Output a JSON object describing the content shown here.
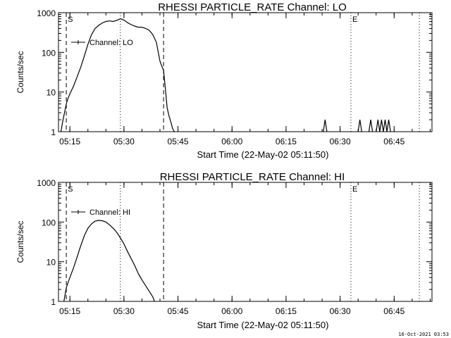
{
  "footer": {
    "timestamp": "16-Oct-2021 03:53"
  },
  "chart_data": [
    {
      "type": "line",
      "title": "RHESSI PARTICLE_RATE Channel: LO",
      "xlabel": "Start Time (22-May-02 05:11:50)",
      "ylabel": "Counts/sec",
      "yscale": "log",
      "ylim": [
        1,
        1000
      ],
      "xlim": [
        "05:11:50",
        "06:55:30"
      ],
      "x_ticks": [
        "05:15",
        "05:30",
        "05:45",
        "06:00",
        "06:15",
        "06:30",
        "06:45"
      ],
      "y_ticks": [
        "1",
        "10",
        "100",
        "1000"
      ],
      "legend": {
        "label": "Channel: LO",
        "position": "top-left"
      },
      "markers": [
        {
          "label": "S",
          "time": "05:14:00",
          "style": "dashed"
        },
        {
          "label": "",
          "time": "05:29:00",
          "style": "dotted"
        },
        {
          "label": "",
          "time": "05:41:00",
          "style": "dashed"
        },
        {
          "label": "E",
          "time": "06:33:00",
          "style": "dotted"
        },
        {
          "label": "",
          "time": "06:52:00",
          "style": "dotted"
        }
      ],
      "series": [
        {
          "name": "Channel: LO",
          "segments": [
            {
              "t": [
                "05:12:30",
                "05:13:00",
                "05:13:30",
                "05:14:00",
                "05:14:30",
                "05:15:00",
                "05:16:00",
                "05:17:00",
                "05:18:00",
                "05:19:00",
                "05:20:00",
                "05:21:00",
                "05:22:00",
                "05:23:00",
                "05:24:00",
                "05:25:00",
                "05:26:00",
                "05:27:00",
                "05:28:00",
                "05:29:00",
                "05:30:00",
                "05:31:00",
                "05:32:00",
                "05:33:00",
                "05:34:00",
                "05:35:00",
                "05:36:00",
                "05:37:00",
                "05:38:00",
                "05:39:00",
                "05:40:00",
                "05:40:30",
                "05:41:00",
                "05:41:30",
                "05:42:00",
                "05:42:30",
                "05:43:00",
                "05:43:30",
                "05:44:00"
              ],
              "v": [
                1,
                1.8,
                3,
                5,
                7,
                9,
                14,
                24,
                42,
                80,
                160,
                280,
                400,
                480,
                550,
                600,
                620,
                600,
                640,
                700,
                650,
                560,
                500,
                460,
                430,
                430,
                400,
                360,
                280,
                180,
                60,
                45,
                35,
                12,
                4,
                2.5,
                1.8,
                1.2,
                1
              ]
            },
            {
              "t": [
                "06:25:20",
                "06:25:50",
                "06:26:20"
              ],
              "v": [
                1,
                2,
                1
              ]
            },
            {
              "t": [
                "06:35:00",
                "06:35:30",
                "06:36:00"
              ],
              "v": [
                1,
                2,
                1
              ]
            },
            {
              "t": [
                "06:38:00",
                "06:38:30",
                "06:39:00"
              ],
              "v": [
                1,
                2,
                1
              ]
            },
            {
              "t": [
                "06:40:00",
                "06:40:30",
                "06:41:00",
                "06:41:30",
                "06:42:00",
                "06:42:30",
                "06:43:00",
                "06:43:30",
                "06:44:00"
              ],
              "v": [
                1,
                2,
                1,
                2,
                1,
                2,
                1,
                2,
                1
              ]
            }
          ]
        }
      ]
    },
    {
      "type": "line",
      "title": "RHESSI PARTICLE_RATE Channel: HI",
      "xlabel": "Start Time (22-May-02 05:11:50)",
      "ylabel": "Counts/sec",
      "yscale": "log",
      "ylim": [
        1,
        1000
      ],
      "xlim": [
        "05:11:50",
        "06:55:30"
      ],
      "x_ticks": [
        "05:15",
        "05:30",
        "05:45",
        "06:00",
        "06:15",
        "06:30",
        "06:45"
      ],
      "y_ticks": [
        "1",
        "10",
        "100",
        "1000"
      ],
      "legend": {
        "label": "Channel: HI",
        "position": "top-left"
      },
      "markers": [
        {
          "label": "S",
          "time": "05:14:00",
          "style": "dashed"
        },
        {
          "label": "",
          "time": "05:29:00",
          "style": "dotted"
        },
        {
          "label": "",
          "time": "05:41:00",
          "style": "dashed"
        },
        {
          "label": "E",
          "time": "06:33:00",
          "style": "dotted"
        },
        {
          "label": "",
          "time": "06:52:00",
          "style": "dotted"
        }
      ],
      "series": [
        {
          "name": "Channel: HI",
          "segments": [
            {
              "t": [
                "05:13:20",
                "05:13:40",
                "05:14:00",
                "05:14:30",
                "05:15:00",
                "05:16:00",
                "05:17:00",
                "05:18:00",
                "05:19:00",
                "05:20:00",
                "05:21:00",
                "05:22:00",
                "05:23:00",
                "05:24:00",
                "05:25:00",
                "05:26:00",
                "05:27:00",
                "05:28:00",
                "05:29:00",
                "05:30:00",
                "05:31:00",
                "05:32:00",
                "05:33:00",
                "05:34:00",
                "05:35:00",
                "05:36:00",
                "05:37:00",
                "05:38:00",
                "05:38:30"
              ],
              "v": [
                1,
                1.5,
                2.2,
                3,
                4,
                7,
                13,
                25,
                45,
                70,
                90,
                105,
                110,
                108,
                100,
                85,
                70,
                55,
                40,
                28,
                18,
                12,
                8,
                5,
                3.5,
                2.5,
                1.8,
                1.3,
                1
              ]
            }
          ]
        }
      ]
    }
  ]
}
